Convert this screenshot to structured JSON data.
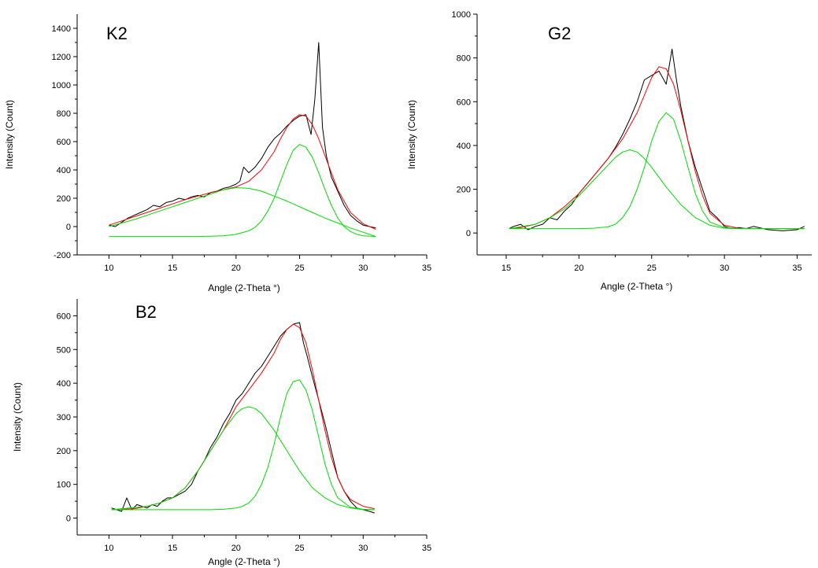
{
  "chart_data": [
    {
      "type": "line",
      "title": "K2",
      "xlabel": "Angle (2-Theta °)",
      "ylabel": "Intensity (Count)",
      "xlim": [
        7.5,
        35
      ],
      "ylim": [
        -200,
        1500
      ],
      "xticks": [
        10,
        15,
        20,
        25,
        30,
        35
      ],
      "yticks": [
        -200,
        0,
        200,
        400,
        600,
        800,
        1000,
        1200,
        1400
      ],
      "grid": false,
      "series": [
        {
          "color": "#000000",
          "role": "measured",
          "x": [
            10.0,
            10.5,
            11.0,
            11.5,
            12.0,
            12.5,
            13.0,
            13.5,
            14.0,
            14.5,
            15.0,
            15.5,
            16.0,
            16.5,
            17.0,
            17.5,
            18.0,
            18.5,
            19.0,
            19.5,
            20.0,
            20.3,
            20.6,
            21.0,
            21.5,
            22.0,
            22.5,
            23.0,
            23.5,
            24.0,
            24.5,
            25.0,
            25.5,
            25.9,
            26.2,
            26.5,
            26.8,
            27.1,
            27.5,
            28.0,
            28.5,
            29.0,
            29.5,
            30.0,
            30.5,
            31.0
          ],
          "y": [
            10,
            0,
            30,
            60,
            80,
            100,
            120,
            150,
            140,
            170,
            180,
            200,
            190,
            210,
            220,
            210,
            240,
            250,
            270,
            280,
            300,
            320,
            420,
            380,
            420,
            480,
            560,
            620,
            660,
            710,
            750,
            780,
            790,
            650,
            900,
            1300,
            700,
            500,
            350,
            250,
            150,
            80,
            40,
            10,
            0,
            -10
          ]
        },
        {
          "color": "#ff0000",
          "role": "fit",
          "x": [
            10,
            11,
            12,
            13,
            14,
            15,
            16,
            17,
            18,
            19,
            20,
            21,
            22,
            23,
            23.5,
            24,
            24.5,
            25,
            25.5,
            26,
            26.5,
            27,
            27.5,
            28,
            29,
            30,
            31
          ],
          "y": [
            10,
            40,
            70,
            100,
            130,
            160,
            190,
            215,
            240,
            260,
            280,
            320,
            400,
            530,
            620,
            700,
            760,
            790,
            780,
            720,
            620,
            500,
            380,
            260,
            100,
            20,
            -20
          ]
        },
        {
          "color": "#00dd00",
          "role": "component",
          "x": [
            10,
            12,
            14,
            16,
            17,
            18,
            19,
            20,
            21,
            22,
            23,
            24,
            25,
            26,
            27,
            28,
            29,
            30,
            31
          ],
          "y": [
            0,
            50,
            110,
            170,
            200,
            230,
            260,
            275,
            270,
            250,
            215,
            180,
            140,
            100,
            60,
            25,
            -10,
            -40,
            -70
          ]
        },
        {
          "color": "#00dd00",
          "role": "component",
          "x": [
            10,
            14,
            17,
            18,
            19,
            20,
            21,
            21.5,
            22,
            22.5,
            23,
            23.5,
            24,
            24.5,
            25,
            25.5,
            26,
            26.5,
            27,
            27.5,
            28,
            28.5,
            29,
            29.5,
            30,
            31
          ],
          "y": [
            -70,
            -70,
            -70,
            -68,
            -65,
            -55,
            -30,
            -5,
            40,
            110,
            200,
            320,
            440,
            540,
            580,
            560,
            490,
            380,
            260,
            150,
            60,
            0,
            -35,
            -55,
            -65,
            -70
          ]
        }
      ]
    },
    {
      "type": "line",
      "title": "G2",
      "xlabel": "Angle (2-Theta °)",
      "ylabel": "Intensity (Count)",
      "xlim": [
        13,
        36
      ],
      "ylim": [
        -100,
        1000
      ],
      "xticks": [
        15,
        20,
        25,
        30,
        35
      ],
      "yticks": [
        0,
        200,
        400,
        600,
        800,
        1000
      ],
      "grid": false,
      "series": [
        {
          "color": "#000000",
          "role": "measured",
          "x": [
            15.2,
            15.5,
            16.0,
            16.5,
            17.0,
            17.5,
            18.0,
            18.5,
            19.0,
            19.5,
            20.0,
            20.5,
            21.0,
            21.5,
            22.0,
            22.5,
            23.0,
            23.5,
            24.0,
            24.5,
            25.0,
            25.5,
            26.0,
            26.4,
            26.7,
            27.0,
            27.5,
            28.0,
            28.5,
            29.0,
            29.5,
            30.0,
            30.5,
            31.0,
            31.5,
            32.0,
            33.0,
            34.0,
            35.0,
            35.5
          ],
          "y": [
            20,
            30,
            40,
            15,
            30,
            40,
            70,
            60,
            100,
            130,
            180,
            220,
            260,
            300,
            340,
            390,
            450,
            520,
            600,
            700,
            720,
            740,
            680,
            840,
            700,
            580,
            420,
            300,
            200,
            100,
            70,
            30,
            20,
            25,
            20,
            30,
            15,
            10,
            15,
            30
          ]
        },
        {
          "color": "#ff0000",
          "role": "fit",
          "x": [
            15.2,
            16,
            17,
            18,
            19,
            20,
            21,
            22,
            23,
            24,
            24.5,
            25,
            25.5,
            26,
            26.5,
            27,
            27.5,
            28,
            28.5,
            29,
            30,
            31,
            32,
            33,
            35.5
          ],
          "y": [
            20,
            25,
            40,
            70,
            120,
            180,
            260,
            340,
            430,
            550,
            630,
            710,
            760,
            750,
            680,
            560,
            420,
            280,
            170,
            90,
            35,
            22,
            20,
            20,
            20
          ]
        },
        {
          "color": "#00dd00",
          "role": "component",
          "x": [
            15.2,
            17,
            18,
            19,
            20,
            21,
            22,
            22.5,
            23,
            23.5,
            24,
            24.5,
            25,
            26,
            27,
            28,
            29,
            30,
            31,
            33,
            35.5
          ],
          "y": [
            20,
            40,
            70,
            110,
            170,
            240,
            310,
            345,
            370,
            380,
            370,
            340,
            300,
            210,
            130,
            70,
            35,
            22,
            20,
            20,
            20
          ]
        },
        {
          "color": "#00dd00",
          "role": "component",
          "x": [
            15.2,
            20,
            21,
            22,
            22.5,
            23,
            23.5,
            24,
            24.5,
            25,
            25.5,
            26,
            26.5,
            27,
            27.5,
            28,
            28.5,
            29,
            30,
            31,
            35.5
          ],
          "y": [
            20,
            20,
            22,
            28,
            40,
            70,
            120,
            200,
            300,
            420,
            510,
            550,
            520,
            420,
            300,
            180,
            100,
            50,
            25,
            20,
            20
          ]
        }
      ]
    },
    {
      "type": "line",
      "title": "B2",
      "xlabel": "Angle (2-Theta °)",
      "ylabel": "Intensity (Count)",
      "xlim": [
        7.5,
        35
      ],
      "ylim": [
        -50,
        650
      ],
      "xticks": [
        10,
        15,
        20,
        25,
        30,
        35
      ],
      "yticks": [
        0,
        100,
        200,
        300,
        400,
        500,
        600
      ],
      "grid": false,
      "series": [
        {
          "color": "#000000",
          "role": "measured",
          "x": [
            10.2,
            10.6,
            11.0,
            11.4,
            11.8,
            12.2,
            12.6,
            13.0,
            13.4,
            13.8,
            14.2,
            14.6,
            15.0,
            15.5,
            16.0,
            16.5,
            17.0,
            17.5,
            18.0,
            18.5,
            19.0,
            19.5,
            20.0,
            20.5,
            21.0,
            21.5,
            22.0,
            22.5,
            23.0,
            23.5,
            24.0,
            24.5,
            25.0,
            25.3,
            25.6,
            26.0,
            26.5,
            27.0,
            27.5,
            28.0,
            28.5,
            29.0,
            29.5,
            30.0,
            30.5,
            30.9
          ],
          "y": [
            30,
            25,
            20,
            60,
            25,
            40,
            35,
            30,
            40,
            35,
            50,
            60,
            60,
            70,
            80,
            100,
            140,
            170,
            210,
            240,
            280,
            310,
            350,
            370,
            400,
            430,
            450,
            480,
            510,
            540,
            560,
            575,
            580,
            520,
            480,
            420,
            350,
            280,
            200,
            120,
            80,
            50,
            30,
            25,
            20,
            15
          ]
        },
        {
          "color": "#ff0000",
          "role": "fit",
          "x": [
            10.2,
            12,
            13,
            14,
            15,
            16,
            17,
            18,
            19,
            20,
            21,
            22,
            23,
            23.5,
            24,
            24.5,
            25,
            25.5,
            26,
            26.5,
            27,
            27.5,
            28,
            28.5,
            29,
            30,
            30.9
          ],
          "y": [
            25,
            28,
            35,
            45,
            60,
            90,
            140,
            200,
            260,
            330,
            380,
            430,
            490,
            530,
            560,
            575,
            565,
            520,
            440,
            350,
            260,
            180,
            120,
            80,
            55,
            35,
            28
          ]
        },
        {
          "color": "#00dd00",
          "role": "component",
          "x": [
            10.2,
            13,
            14,
            15,
            16,
            17,
            18,
            19,
            20,
            20.5,
            21,
            21.5,
            22,
            23,
            24,
            25,
            26,
            27,
            28,
            29,
            30,
            30.9
          ],
          "y": [
            25,
            35,
            45,
            60,
            90,
            140,
            200,
            260,
            310,
            325,
            330,
            325,
            310,
            260,
            200,
            140,
            90,
            60,
            40,
            30,
            25,
            25
          ]
        },
        {
          "color": "#00dd00",
          "role": "component",
          "x": [
            10.2,
            18,
            19,
            20,
            20.5,
            21,
            21.5,
            22,
            22.5,
            23,
            23.5,
            24,
            24.5,
            25,
            25.5,
            26,
            26.5,
            27,
            27.5,
            28,
            29,
            30,
            30.9
          ],
          "y": [
            25,
            25,
            26,
            30,
            35,
            45,
            65,
            100,
            150,
            220,
            300,
            370,
            405,
            410,
            380,
            320,
            240,
            160,
            100,
            60,
            32,
            26,
            25
          ]
        }
      ]
    }
  ]
}
